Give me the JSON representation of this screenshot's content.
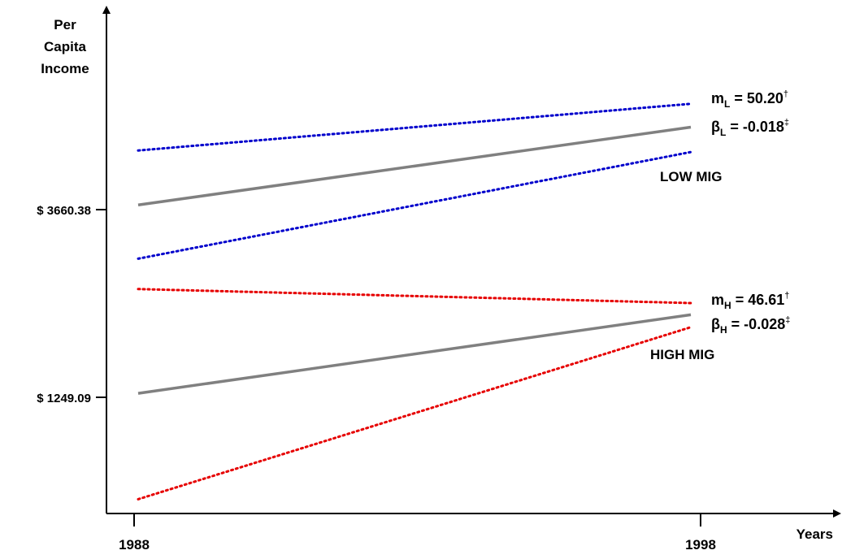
{
  "chart_data": {
    "type": "line",
    "title": "",
    "ylabel_lines": [
      "Per",
      "Capita",
      "Income"
    ],
    "xlabel": "Years",
    "x_ticks": [
      "1988",
      "1998"
    ],
    "y_ticks": [
      "$ 3660.38",
      "$ 1249.09"
    ],
    "x": [
      1988,
      1998
    ],
    "grid": false,
    "series": [
      {
        "group": "LOW MIG",
        "role": "fit",
        "style": "solid",
        "color": "#808080",
        "values": [
          3720,
          4720
        ]
      },
      {
        "group": "LOW MIG",
        "role": "upper",
        "style": "dotted",
        "color": "#0000cc",
        "values": [
          4420,
          5020
        ]
      },
      {
        "group": "LOW MIG",
        "role": "lower",
        "style": "dotted",
        "color": "#0000cc",
        "values": [
          3030,
          4400
        ]
      },
      {
        "group": "HIGH MIG",
        "role": "fit",
        "style": "solid",
        "color": "#808080",
        "values": [
          1300,
          2310
        ]
      },
      {
        "group": "HIGH MIG",
        "role": "upper",
        "style": "dotted",
        "color": "#e60000",
        "values": [
          2640,
          2460
        ]
      },
      {
        "group": "HIGH MIG",
        "role": "lower",
        "style": "dotted",
        "color": "#e60000",
        "values": [
          -60,
          2150
        ]
      }
    ],
    "annotations": {
      "low": {
        "m_base": "m",
        "m_sub": "L",
        "m_value": " = 50.20",
        "m_sup": "†",
        "b_base": "β",
        "b_sub": "L",
        "b_value": " = -0.018",
        "b_sup": "‡",
        "group_label": "LOW MIG"
      },
      "high": {
        "m_base": "m",
        "m_sub": "H",
        "m_value": " = 46.61",
        "m_sup": "†",
        "b_base": "β",
        "b_sub": "H",
        "b_value": " = -0.028",
        "b_sup": "‡",
        "group_label": "HIGH MIG"
      }
    }
  }
}
